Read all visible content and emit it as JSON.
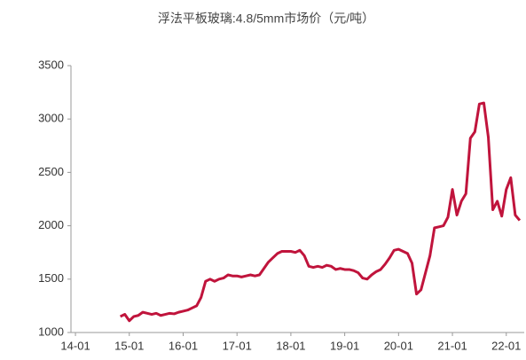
{
  "chart_data": {
    "type": "line",
    "title": "浮法平板玻璃:4.8/5mm市场价（元/吨）",
    "x": [
      "14-11",
      "14-12",
      "15-01",
      "15-02",
      "15-03",
      "15-04",
      "15-05",
      "15-06",
      "15-07",
      "15-08",
      "15-09",
      "15-10",
      "15-11",
      "15-12",
      "16-01",
      "16-02",
      "16-03",
      "16-04",
      "16-05",
      "16-06",
      "16-07",
      "16-08",
      "16-09",
      "16-10",
      "16-11",
      "16-12",
      "17-01",
      "17-02",
      "17-03",
      "17-04",
      "17-05",
      "17-06",
      "17-07",
      "17-08",
      "17-09",
      "17-10",
      "17-11",
      "17-12",
      "18-01",
      "18-02",
      "18-03",
      "18-04",
      "18-05",
      "18-06",
      "18-07",
      "18-08",
      "18-09",
      "18-10",
      "18-11",
      "18-12",
      "19-01",
      "19-02",
      "19-03",
      "19-04",
      "19-05",
      "19-06",
      "19-07",
      "19-08",
      "19-09",
      "19-10",
      "19-11",
      "19-12",
      "20-01",
      "20-02",
      "20-03",
      "20-04",
      "20-05",
      "20-06",
      "20-07",
      "20-08",
      "20-09",
      "20-10",
      "20-11",
      "20-12",
      "21-01",
      "21-02",
      "21-03",
      "21-04",
      "21-05",
      "21-06",
      "21-07",
      "21-08",
      "21-09",
      "21-10",
      "21-11",
      "21-12",
      "22-01",
      "22-02",
      "22-03",
      "22-04"
    ],
    "series": [
      {
        "name": "浮法平板玻璃:4.8/5mm市场价",
        "color": "#c0143c",
        "values": [
          1150,
          1170,
          1110,
          1150,
          1160,
          1190,
          1180,
          1170,
          1180,
          1160,
          1170,
          1180,
          1175,
          1190,
          1200,
          1210,
          1230,
          1250,
          1330,
          1480,
          1500,
          1480,
          1500,
          1510,
          1540,
          1530,
          1530,
          1520,
          1530,
          1540,
          1530,
          1540,
          1600,
          1660,
          1700,
          1740,
          1760,
          1760,
          1760,
          1750,
          1770,
          1720,
          1620,
          1610,
          1620,
          1610,
          1630,
          1620,
          1590,
          1600,
          1590,
          1590,
          1580,
          1560,
          1510,
          1500,
          1540,
          1570,
          1590,
          1640,
          1700,
          1770,
          1780,
          1760,
          1740,
          1650,
          1360,
          1400,
          1560,
          1720,
          1980,
          1990,
          2000,
          2080,
          2340,
          2100,
          2230,
          2300,
          2820,
          2880,
          3140,
          3150,
          2830,
          2150,
          2230,
          2090,
          2340,
          2450,
          2100,
          2050
        ]
      }
    ],
    "xlim": [
      "13-12",
      "22-05"
    ],
    "xticks": [
      "14-01",
      "15-01",
      "16-01",
      "17-01",
      "18-01",
      "19-01",
      "20-01",
      "21-01",
      "22-01"
    ],
    "ylim": [
      1000,
      3500
    ],
    "yticks": [
      1000,
      1500,
      2000,
      2500,
      3000,
      3500
    ],
    "grid": false
  }
}
